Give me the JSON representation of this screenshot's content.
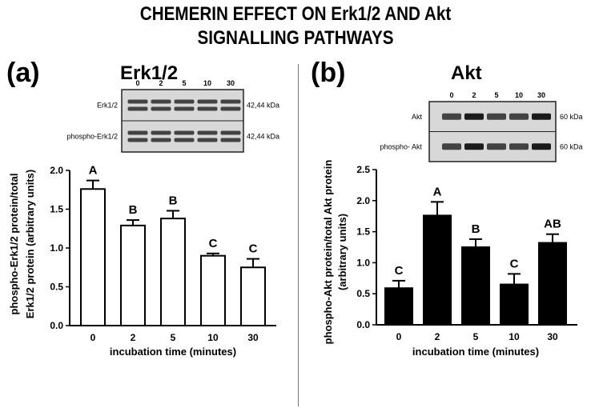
{
  "figure": {
    "title_line1": "CHEMERIN EFFECT ON Erk1/2 AND Akt",
    "title_line2": "SIGNALLING PATHWAYS"
  },
  "panels": [
    {
      "label": "(a)",
      "title": "Erk1/2",
      "blot": {
        "lanes": [
          "0",
          "2",
          "5",
          "10",
          "30"
        ],
        "rows": [
          {
            "name": "Erk1/2",
            "kda": "42,44 kDa"
          },
          {
            "name": "phospho-Erk1/2",
            "kda": "42,44 kDa"
          }
        ]
      }
    },
    {
      "label": "(b)",
      "title": "Akt",
      "blot": {
        "lanes": [
          "0",
          "2",
          "5",
          "10",
          "30"
        ],
        "rows": [
          {
            "name": "Akt",
            "kda": "60 kDa"
          },
          {
            "name": "phospho- Akt",
            "kda": "60 kDa"
          }
        ]
      }
    }
  ],
  "chart_data": [
    {
      "type": "bar",
      "categories": [
        "0",
        "2",
        "5",
        "10",
        "30"
      ],
      "values": [
        1.76,
        1.29,
        1.38,
        0.9,
        0.75
      ],
      "errors": [
        0.11,
        0.07,
        0.1,
        0.03,
        0.11
      ],
      "letters": [
        "A",
        "B",
        "B",
        "C",
        "C"
      ],
      "bar_color": "#ffffff",
      "ylabel_line1": "phospho-Erk1/2 protein/total",
      "ylabel_line2": "Erk1/2 protein (arbitrary units)",
      "xlabel": "incubation time (minutes)",
      "ylim": [
        0,
        2.0
      ],
      "yticks": [
        "0.0",
        "0.5",
        "1.0",
        "1.5",
        "2.0"
      ]
    },
    {
      "type": "bar",
      "categories": [
        "0",
        "2",
        "5",
        "10",
        "30"
      ],
      "values": [
        0.59,
        1.76,
        1.25,
        0.65,
        1.32
      ],
      "errors": [
        0.12,
        0.22,
        0.13,
        0.17,
        0.14
      ],
      "letters": [
        "C",
        "A",
        "B",
        "C",
        "AB"
      ],
      "bar_color": "#000000",
      "ylabel_line1": "phospho-Akt protein/total Akt protein",
      "ylabel_line2": "(arbitrary units)",
      "xlabel": "incubation time (minutes)",
      "ylim": [
        0,
        2.5
      ],
      "yticks": [
        "0.0",
        "0.5",
        "1.0",
        "1.5",
        "2.0",
        "2.5"
      ]
    }
  ]
}
